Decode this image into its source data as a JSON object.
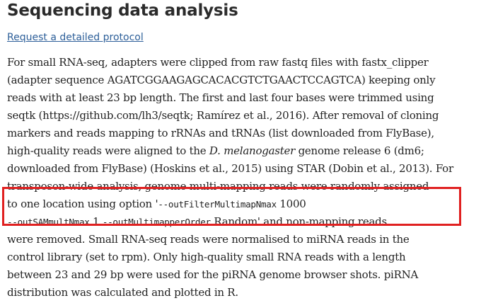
{
  "section": {
    "heading": "Sequencing data analysis",
    "protocol_link": "Request a detailed protocol"
  },
  "paragraph": {
    "lines": [
      {
        "segments": [
          {
            "text": "For small RNA-seq, adapters were clipped from raw fastq files with fastx_clipper",
            "style": "normal"
          }
        ]
      },
      {
        "segments": [
          {
            "text": "(adapter sequence AGATCGGAAGAGCACACGTCTGAACTCCAGTCA) keeping only",
            "style": "normal"
          }
        ]
      },
      {
        "segments": [
          {
            "text": "reads with at least 23 bp length. The first and last four bases were trimmed using",
            "style": "normal"
          }
        ]
      },
      {
        "segments": [
          {
            "text": "seqtk (https://github.com/lh3/seqtk; Ramírez et al., 2016). After removal of cloning",
            "style": "normal"
          }
        ]
      },
      {
        "segments": [
          {
            "text": "markers and reads mapping to rRNAs and tRNAs (list downloaded from FlyBase),",
            "style": "normal"
          }
        ]
      },
      {
        "segments": [
          {
            "text": "high-quality reads were aligned to the ",
            "style": "normal"
          },
          {
            "text": "D. melanogaster",
            "style": "italic"
          },
          {
            "text": " genome release 6 (dm6;",
            "style": "normal"
          }
        ]
      },
      {
        "segments": [
          {
            "text": "downloaded from FlyBase) (Hoskins et al., 2015) using STAR (Dobin et al., 2013). For",
            "style": "normal"
          }
        ]
      },
      {
        "segments": [
          {
            "text": "transposon-wide analysis, genome multi-mapping reads were randomly assigned",
            "style": "normal"
          }
        ]
      },
      {
        "segments": [
          {
            "text": "to one location using option '",
            "style": "normal"
          },
          {
            "text": "--outFilterMultimapNmax",
            "style": "code"
          },
          {
            "text": " 1000",
            "style": "normal"
          }
        ]
      },
      {
        "segments": [
          {
            "text": "--outSAMmultNmax",
            "style": "code"
          },
          {
            "text": " 1 ",
            "style": "normal"
          },
          {
            "text": "--outMultimapperOrder",
            "style": "code"
          },
          {
            "text": " Random' and non-mapping reads",
            "style": "normal"
          }
        ]
      },
      {
        "segments": [
          {
            "text": "were removed. Small RNA-seq reads were normalised to miRNA reads in the",
            "style": "normal"
          }
        ]
      },
      {
        "segments": [
          {
            "text": "control library (set to rpm). Only high-quality small RNA reads with a length",
            "style": "normal"
          }
        ]
      },
      {
        "segments": [
          {
            "text": "between 23 and 29 bp were used for the piRNA genome browser shots. piRNA",
            "style": "normal"
          }
        ]
      },
      {
        "segments": [
          {
            "text": "distribution was calculated and plotted in R.",
            "style": "normal"
          }
        ]
      }
    ]
  },
  "colors": {
    "highlight_border": "#e02020",
    "link": "#2d5f99",
    "text": "#222222"
  }
}
